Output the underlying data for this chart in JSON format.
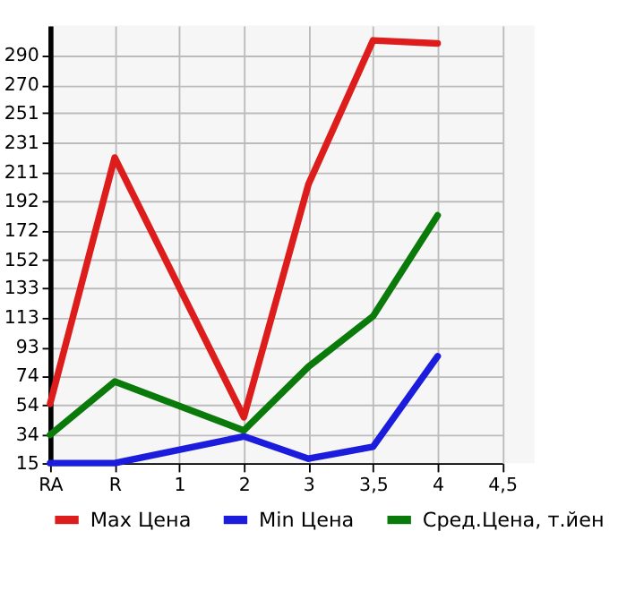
{
  "chart_data": {
    "type": "line",
    "categories": [
      "RA",
      "R",
      "1",
      "2",
      "3",
      "3,5",
      "4",
      "4,5"
    ],
    "series": [
      {
        "name": "Max Цена",
        "color": "#dd1c1c",
        "values": [
          55,
          221,
          null,
          46,
          203,
          300,
          298,
          null
        ]
      },
      {
        "name": "Min Цена",
        "color": "#1c1cdd",
        "values": [
          15,
          15,
          null,
          33,
          18,
          26,
          87,
          null
        ]
      },
      {
        "name": "Сред.Цена, т.йен",
        "color": "#0a7a0a",
        "values": [
          34,
          70,
          null,
          37,
          80,
          114,
          182,
          null
        ]
      }
    ],
    "ylim": [
      15,
      310
    ],
    "yticks": [
      15,
      34,
      54,
      74,
      93,
      113,
      133,
      152,
      172,
      192,
      211,
      231,
      251,
      270,
      290
    ],
    "grid": true,
    "legend": "bottom",
    "marker": "none",
    "line_style": "solid"
  }
}
